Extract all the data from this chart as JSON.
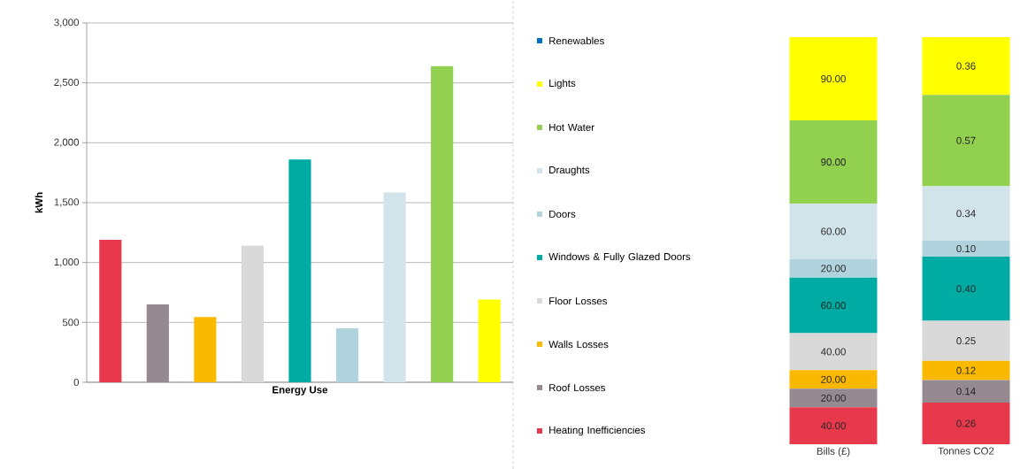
{
  "chart_data": [
    {
      "type": "bar",
      "xlabel": "Energy Use",
      "ylabel": "kWh",
      "categories": [
        null,
        null,
        null,
        null,
        null,
        null,
        null,
        null,
        null
      ],
      "values": [
        1190,
        650,
        545,
        1140,
        1860,
        450,
        1585,
        2640,
        690
      ],
      "colors": [
        "#e8394c",
        "#948a8f",
        "#fab800",
        "#d9d9d9",
        "#00aba4",
        "#b0d3dd",
        "#d1e4ea",
        "#92d050",
        "#ffff00"
      ],
      "ylim": [
        0,
        3000
      ],
      "yticks": [
        0,
        500,
        {
          "value": 1000,
          "label": "1,000"
        },
        {
          "value": 1500,
          "label": "1,500"
        },
        {
          "value": 2000,
          "label": "2,000"
        },
        {
          "value": 2500,
          "label": "2,500"
        },
        {
          "value": 3000,
          "label": "3,000"
        }
      ],
      "grid": "y",
      "tick_labels": "y"
    },
    {
      "type": "bar",
      "stacked": true,
      "categories": [
        "Bills (£)"
      ],
      "legend": "left",
      "tick_labels": "x",
      "series": [
        {
          "name": "Heating Inefficiencies",
          "color": "#e8394c",
          "values": [
            40
          ],
          "value_labels": [
            "40.00"
          ]
        },
        {
          "name": "Roof Losses",
          "color": "#948a8f",
          "values": [
            20
          ],
          "value_labels": [
            "20.00"
          ]
        },
        {
          "name": "Walls Losses",
          "color": "#fab800",
          "values": [
            20
          ],
          "value_labels": [
            "20.00"
          ]
        },
        {
          "name": "Floor Losses",
          "color": "#d9d9d9",
          "values": [
            40
          ],
          "value_labels": [
            "40.00"
          ]
        },
        {
          "name": "Windows & Fully Glazed Doors",
          "color": "#00aba4",
          "values": [
            60
          ],
          "value_labels": [
            "60.00"
          ]
        },
        {
          "name": "Doors",
          "color": "#b0d3dd",
          "values": [
            20
          ],
          "value_labels": [
            "20.00"
          ]
        },
        {
          "name": "Draughts",
          "color": "#d1e4ea",
          "values": [
            60
          ],
          "value_labels": [
            "60.00"
          ]
        },
        {
          "name": "Hot Water",
          "color": "#92d050",
          "values": [
            90
          ],
          "value_labels": [
            "90.00"
          ]
        },
        {
          "name": "Lights",
          "color": "#ffff00",
          "values": [
            90
          ],
          "value_labels": [
            "90.00"
          ]
        },
        {
          "name": "Renewables",
          "color": "#0070c0",
          "values": [
            null
          ],
          "value_labels": [
            null
          ]
        }
      ]
    },
    {
      "type": "bar",
      "stacked": true,
      "categories": [
        "Tonnes CO2"
      ],
      "tick_labels": "x",
      "series": [
        {
          "color": "#e8394c",
          "values": [
            0.26
          ],
          "value_labels": [
            "0.26"
          ]
        },
        {
          "color": "#948a8f",
          "values": [
            0.14
          ],
          "value_labels": [
            "0.14"
          ]
        },
        {
          "color": "#fab800",
          "values": [
            0.12
          ],
          "value_labels": [
            "0.12"
          ]
        },
        {
          "color": "#d9d9d9",
          "values": [
            0.25
          ],
          "value_labels": [
            "0.25"
          ]
        },
        {
          "color": "#00aba4",
          "values": [
            0.4
          ],
          "value_labels": [
            "0.40"
          ]
        },
        {
          "color": "#b0d3dd",
          "values": [
            0.1
          ],
          "value_labels": [
            "0.10"
          ]
        },
        {
          "color": "#d1e4ea",
          "values": [
            0.34
          ],
          "value_labels": [
            "0.34"
          ]
        },
        {
          "color": "#92d050",
          "values": [
            0.57
          ],
          "value_labels": [
            "0.57"
          ]
        },
        {
          "color": "#ffff00",
          "values": [
            0.36
          ],
          "value_labels": [
            "0.36"
          ]
        }
      ]
    }
  ]
}
